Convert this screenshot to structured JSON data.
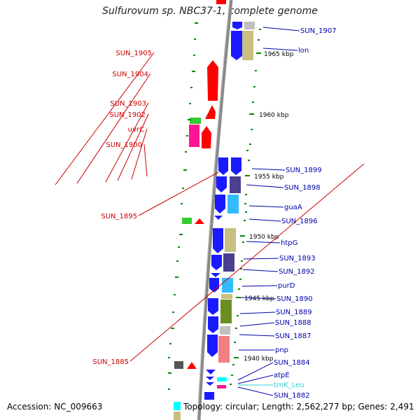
{
  "title": "Sulfurovum sp. NBC37-1, complete genome",
  "accession": "Accession: NC_009663",
  "summary": "Topology: circular; Length: 2,562,277 bp; Genes: 2,491",
  "colors": {
    "backbone": "#8a8a8a",
    "red_label": "#cc0000",
    "blue_label": "#0000aa",
    "trna_label": "#33cccc",
    "tick": "#008800"
  },
  "kbp_labels": [
    "1965 kbp",
    "1960 kbp",
    "1955 kbp",
    "1950 kbp",
    "1945 kbp",
    "1940 kbp"
  ],
  "left_genes": [
    "SUN_1905",
    "SUN_1904",
    "SUN_1903",
    "SUN_1902",
    "uvrC",
    "SUN_1900",
    "SUN_1895",
    "SUN_1885"
  ],
  "right_genes": [
    "SUN_1907",
    "lon",
    "SUN_1899",
    "SUN_1898",
    "guaA",
    "SUN_1896",
    "htpG",
    "SUN_1893",
    "SUN_1892",
    "purD",
    "SUN_1890",
    "SUN_1889",
    "SUN_1888",
    "SUN_1887",
    "pnp",
    "SUN_1884",
    "atpE",
    "trnK_Leu",
    "SUN_1882"
  ]
}
